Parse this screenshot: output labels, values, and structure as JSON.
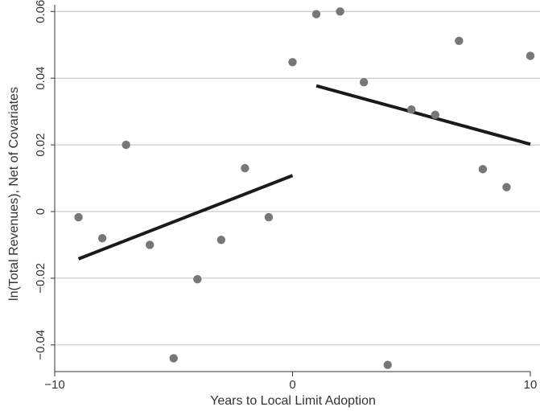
{
  "chart_data": {
    "type": "scatter",
    "title": "",
    "xlabel": "Years to Local Limit Adoption",
    "ylabel": "ln(Total Revenues), Net of Covariates",
    "xlim": [
      -10,
      10
    ],
    "ylim": [
      -0.048,
      0.062
    ],
    "x_ticks": [
      -10,
      0,
      10
    ],
    "x_tick_labels": [
      "−10",
      "0",
      "10"
    ],
    "y_ticks": [
      -0.04,
      -0.02,
      0,
      0.02,
      0.04,
      0.06
    ],
    "y_tick_labels": [
      "−0.04",
      "−0.02",
      "0",
      "0.02",
      "0.04",
      "0.06"
    ],
    "grid": "horizontal",
    "legend": "none",
    "colors": {
      "points": "#777777",
      "fit_line": "#1a1a1a",
      "grid": "#bfbfbf",
      "axis": "#333333"
    },
    "points": [
      {
        "x": -9,
        "y": -0.0017
      },
      {
        "x": -8,
        "y": -0.008
      },
      {
        "x": -7,
        "y": 0.02
      },
      {
        "x": -6,
        "y": -0.01
      },
      {
        "x": -5,
        "y": -0.044
      },
      {
        "x": -4,
        "y": -0.0203
      },
      {
        "x": -3,
        "y": -0.0085
      },
      {
        "x": -2,
        "y": 0.013
      },
      {
        "x": -1,
        "y": -0.0017
      },
      {
        "x": 0,
        "y": 0.0448
      },
      {
        "x": 1,
        "y": 0.0592
      },
      {
        "x": 2,
        "y": 0.06
      },
      {
        "x": 3,
        "y": 0.0388
      },
      {
        "x": 4,
        "y": -0.046
      },
      {
        "x": 5,
        "y": 0.0306
      },
      {
        "x": 6,
        "y": 0.029
      },
      {
        "x": 7,
        "y": 0.0512
      },
      {
        "x": 8,
        "y": 0.0127
      },
      {
        "x": 9,
        "y": 0.0073
      },
      {
        "x": 10,
        "y": 0.0467
      }
    ],
    "fit_lines": [
      {
        "x": [
          -9,
          0
        ],
        "y": [
          -0.0142,
          0.0108
        ]
      },
      {
        "x": [
          1,
          10
        ],
        "y": [
          0.0377,
          0.0202
        ]
      }
    ]
  }
}
